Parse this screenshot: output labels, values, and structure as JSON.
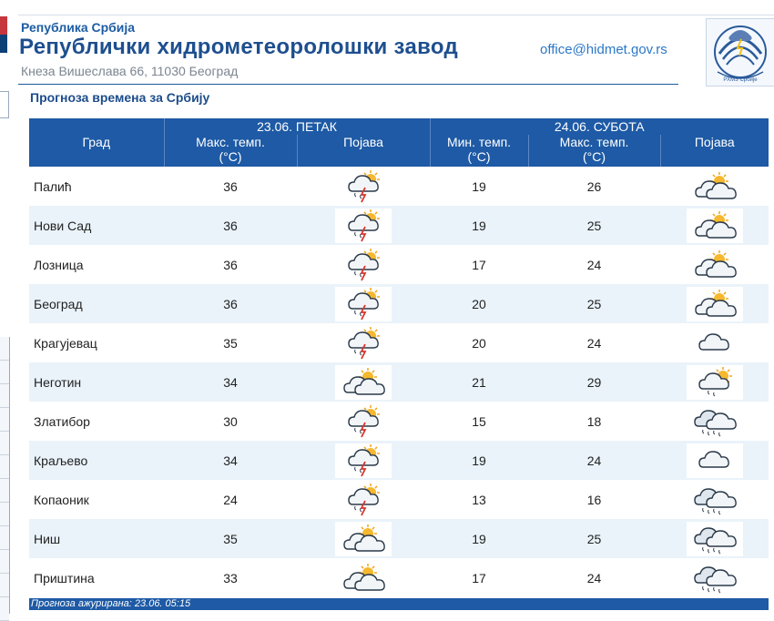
{
  "header": {
    "small_title": "Република Србија",
    "title": "Републички хидрометеоролошки завод",
    "address": "Кнеза Вишеслава 66, 11030 Београд",
    "email": "office@hidmet.gov.rs",
    "logo_text": "РХМЗ Србије"
  },
  "subtitle": "Прогноза времена за Србију",
  "day1": {
    "label": "23.06. ПЕТАК"
  },
  "day2": {
    "label": "24.06. СУБОТА"
  },
  "columns": {
    "city": "Град",
    "max1_line1": "Макс. темп.",
    "max1_line2": "(°C)",
    "phen1": "Појава",
    "min2_line1": "Мин. темп.",
    "min2_line2": "(°C)",
    "max2_line1": "Макс. темп.",
    "max2_line2": "(°C)",
    "phen2": "Појава"
  },
  "rows": [
    {
      "city": "Палић",
      "max1": "36",
      "icon1": "thunderstorm-sun-icon",
      "min2": "19",
      "max2": "26",
      "icon2": "partly-cloudy-sun-icon"
    },
    {
      "city": "Нови Сад",
      "max1": "36",
      "icon1": "thunderstorm-sun-icon",
      "min2": "19",
      "max2": "25",
      "icon2": "partly-cloudy-sun-icon"
    },
    {
      "city": "Лозница",
      "max1": "36",
      "icon1": "thunderstorm-sun-icon",
      "min2": "17",
      "max2": "24",
      "icon2": "partly-cloudy-sun-icon"
    },
    {
      "city": "Београд",
      "max1": "36",
      "icon1": "thunderstorm-sun-icon",
      "min2": "20",
      "max2": "25",
      "icon2": "partly-cloudy-sun-icon"
    },
    {
      "city": "Крагујевац",
      "max1": "35",
      "icon1": "thunderstorm-sun-icon",
      "min2": "20",
      "max2": "24",
      "icon2": "cloudy-icon"
    },
    {
      "city": "Неготин",
      "max1": "34",
      "icon1": "partly-cloudy-sun-icon",
      "min2": "21",
      "max2": "29",
      "icon2": "rain-shower-sun-icon"
    },
    {
      "city": "Златибор",
      "max1": "30",
      "icon1": "thunderstorm-sun-icon",
      "min2": "15",
      "max2": "18",
      "icon2": "rain-icon"
    },
    {
      "city": "Краљево",
      "max1": "34",
      "icon1": "thunderstorm-sun-icon",
      "min2": "19",
      "max2": "24",
      "icon2": "cloudy-icon"
    },
    {
      "city": "Копаоник",
      "max1": "24",
      "icon1": "thunderstorm-sun-icon",
      "min2": "13",
      "max2": "16",
      "icon2": "rain-icon"
    },
    {
      "city": "Ниш",
      "max1": "35",
      "icon1": "partly-cloudy-sun-icon",
      "min2": "19",
      "max2": "25",
      "icon2": "rain-icon"
    },
    {
      "city": "Приштина",
      "max1": "33",
      "icon1": "partly-cloudy-sun-icon",
      "min2": "17",
      "max2": "24",
      "icon2": "rain-icon"
    }
  ],
  "footer": "Прогноза ажурирана:  23.06.  05:15",
  "colors": {
    "header_blue": "#1e5aa5",
    "row_alt": "#eaf3fa",
    "title_blue": "#1e4f8f",
    "sun": "#f2a51a",
    "lightning": "#d9342b"
  }
}
